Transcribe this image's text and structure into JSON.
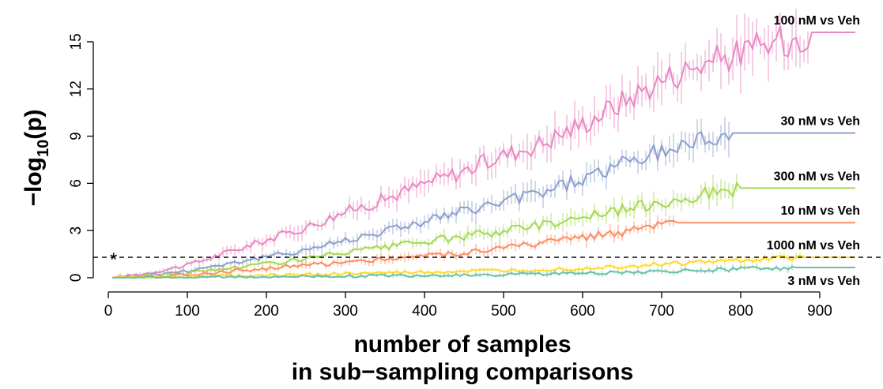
{
  "chart_data": {
    "type": "line",
    "xlabel_line1": "number of samples",
    "xlabel_line2": "in sub−sampling comparisons",
    "ylabel_main": "−log",
    "ylabel_sub": "10",
    "ylabel_tail": "(p)",
    "xlim": [
      0,
      950
    ],
    "ylim": [
      0,
      16
    ],
    "xticks": [
      0,
      100,
      200,
      300,
      400,
      500,
      600,
      700,
      800,
      900
    ],
    "yticks": [
      0,
      3,
      6,
      9,
      12,
      15
    ],
    "threshold": {
      "y": 1.3,
      "style": "dashed",
      "marker": "*"
    },
    "grid": false,
    "series": [
      {
        "name": "100 nM vs Veh",
        "color": "#e78ac3",
        "points": [
          [
            5,
            0
          ],
          [
            50,
            0.3
          ],
          [
            100,
            0.8
          ],
          [
            150,
            1.6
          ],
          [
            200,
            2.4
          ],
          [
            250,
            3.2
          ],
          [
            300,
            4.2
          ],
          [
            350,
            5.0
          ],
          [
            400,
            6.0
          ],
          [
            450,
            6.8
          ],
          [
            500,
            7.8
          ],
          [
            550,
            8.6
          ],
          [
            600,
            9.8
          ],
          [
            650,
            11.2
          ],
          [
            700,
            12.6
          ],
          [
            750,
            13.6
          ],
          [
            800,
            14.3
          ],
          [
            850,
            15.0
          ],
          [
            890,
            15.6
          ],
          [
            945,
            15.6
          ]
        ]
      },
      {
        "name": "30 nM vs Veh",
        "color": "#8da0cb",
        "points": [
          [
            5,
            0
          ],
          [
            50,
            0.15
          ],
          [
            100,
            0.45
          ],
          [
            150,
            0.9
          ],
          [
            200,
            1.3
          ],
          [
            250,
            1.8
          ],
          [
            300,
            2.4
          ],
          [
            350,
            3.0
          ],
          [
            400,
            3.6
          ],
          [
            450,
            4.2
          ],
          [
            500,
            4.8
          ],
          [
            550,
            5.5
          ],
          [
            600,
            6.3
          ],
          [
            650,
            7.2
          ],
          [
            700,
            8.0
          ],
          [
            750,
            8.8
          ],
          [
            790,
            9.2
          ],
          [
            945,
            9.2
          ]
        ]
      },
      {
        "name": "300 nM vs Veh",
        "color": "#a6d854",
        "points": [
          [
            5,
            0
          ],
          [
            50,
            0.1
          ],
          [
            100,
            0.3
          ],
          [
            150,
            0.6
          ],
          [
            200,
            0.9
          ],
          [
            250,
            1.2
          ],
          [
            300,
            1.6
          ],
          [
            350,
            1.9
          ],
          [
            400,
            2.3
          ],
          [
            450,
            2.6
          ],
          [
            500,
            3.0
          ],
          [
            550,
            3.4
          ],
          [
            600,
            3.9
          ],
          [
            650,
            4.3
          ],
          [
            700,
            4.8
          ],
          [
            750,
            5.3
          ],
          [
            800,
            5.7
          ],
          [
            945,
            5.7
          ]
        ]
      },
      {
        "name": "10 nM vs Veh",
        "color": "#fc8d62",
        "points": [
          [
            5,
            0
          ],
          [
            50,
            0.08
          ],
          [
            100,
            0.2
          ],
          [
            150,
            0.4
          ],
          [
            200,
            0.6
          ],
          [
            250,
            0.8
          ],
          [
            300,
            1.0
          ],
          [
            350,
            1.2
          ],
          [
            400,
            1.4
          ],
          [
            450,
            1.6
          ],
          [
            500,
            1.9
          ],
          [
            550,
            2.2
          ],
          [
            600,
            2.6
          ],
          [
            650,
            2.9
          ],
          [
            700,
            3.3
          ],
          [
            720,
            3.5
          ],
          [
            945,
            3.5
          ]
        ]
      },
      {
        "name": "1000 nM vs Veh",
        "color": "#ffd92f",
        "points": [
          [
            5,
            0
          ],
          [
            100,
            0.08
          ],
          [
            200,
            0.15
          ],
          [
            300,
            0.25
          ],
          [
            400,
            0.35
          ],
          [
            500,
            0.45
          ],
          [
            600,
            0.6
          ],
          [
            700,
            0.85
          ],
          [
            800,
            1.1
          ],
          [
            880,
            1.3
          ],
          [
            945,
            1.3
          ]
        ]
      },
      {
        "name": "3 nM vs Veh",
        "color": "#66c2a5",
        "points": [
          [
            5,
            0
          ],
          [
            100,
            0.03
          ],
          [
            200,
            0.06
          ],
          [
            300,
            0.1
          ],
          [
            400,
            0.15
          ],
          [
            500,
            0.2
          ],
          [
            600,
            0.3
          ],
          [
            700,
            0.4
          ],
          [
            800,
            0.55
          ],
          [
            870,
            0.65
          ],
          [
            945,
            0.65
          ]
        ]
      }
    ]
  }
}
